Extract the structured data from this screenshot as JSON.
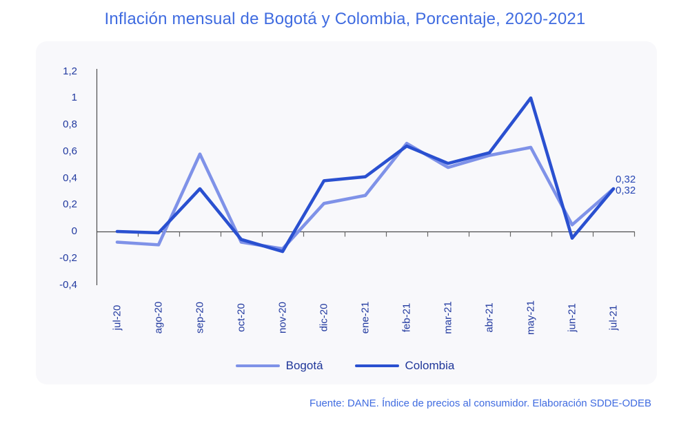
{
  "page": {
    "title": "Inflación mensual de Bogotá y Colombia, Porcentaje, 2020-2021",
    "footer": "Fuente: DANE. Índice de precios al consumidor. Elaboración SDDE-ODEB"
  },
  "colors": {
    "title_text": "#3f6be0",
    "footer_text": "#3f6be0",
    "axis_text": "#21399f",
    "data_label_text": "#2746b4",
    "axis_line": "#4d4d4d",
    "tick_line": "#666666",
    "panel_bg": "#f8f8fb",
    "bogota_line": "#7f92e8",
    "colombia_line": "#2a50d0"
  },
  "chart_data": {
    "type": "line",
    "title": "Inflación mensual de Bogotá y Colombia, Porcentaje, 2020-2021",
    "xlabel": "",
    "ylabel": "",
    "grid": false,
    "legend_position": "bottom",
    "ylim": [
      -0.4,
      1.2
    ],
    "categories": [
      "jul-20",
      "ago-20",
      "sep-20",
      "oct-20",
      "nov-20",
      "dic-20",
      "ene-21",
      "feb-21",
      "mar-21",
      "abr-21",
      "may-21",
      "jun-21",
      "jul-21"
    ],
    "series": [
      {
        "name": "Bogotá",
        "color": "#7f92e8",
        "values": [
          -0.08,
          -0.1,
          0.58,
          -0.08,
          -0.13,
          0.21,
          0.27,
          0.66,
          0.48,
          0.57,
          0.63,
          0.05,
          0.32
        ],
        "end_label": "0,32"
      },
      {
        "name": "Colombia",
        "color": "#2a50d0",
        "values": [
          0.0,
          -0.01,
          0.32,
          -0.06,
          -0.15,
          0.38,
          0.41,
          0.64,
          0.51,
          0.59,
          1.0,
          -0.05,
          0.32
        ],
        "end_label": "0,32"
      }
    ],
    "y_ticks": [
      {
        "value": 1.2,
        "label": "1,2"
      },
      {
        "value": 1,
        "label": "1"
      },
      {
        "value": 0.8,
        "label": "0,8"
      },
      {
        "value": 0.6,
        "label": "0,6"
      },
      {
        "value": 0.4,
        "label": "0,4"
      },
      {
        "value": 0.2,
        "label": "0,2"
      },
      {
        "value": 0,
        "label": "0"
      },
      {
        "value": -0.2,
        "label": "-0,2"
      },
      {
        "value": -0.4,
        "label": "-0,4"
      }
    ]
  }
}
